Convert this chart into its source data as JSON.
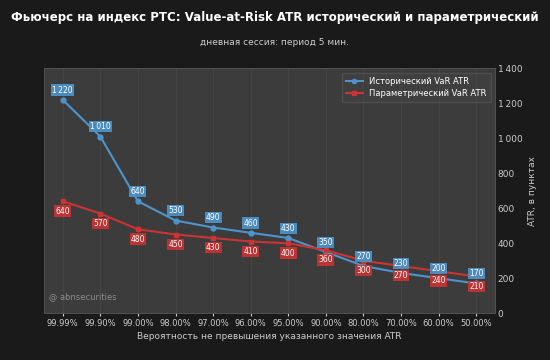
{
  "title": "Фьючерс на индекс РТС: Value-at-Risk ATR исторический и параметрический",
  "subtitle": "дневная сессия: период 5 мин.",
  "xlabel": "Вероятность не превышения указанного значения ATR",
  "ylabel_right": "ATR, в пунктах",
  "watermark": "@ abnsecurities",
  "x_labels": [
    "99.99%",
    "99.90%",
    "99.00%",
    "98.00%",
    "97.00%",
    "96.00%",
    "95.00%",
    "90.00%",
    "80.00%",
    "70.00%",
    "60.00%",
    "50.00%"
  ],
  "historical_values": [
    1220,
    1010,
    640,
    530,
    490,
    460,
    430,
    350,
    270,
    230,
    200,
    170
  ],
  "parametric_values": [
    640,
    570,
    480,
    450,
    430,
    410,
    400,
    360,
    300,
    270,
    240,
    210
  ],
  "historical_color": "#4d94cc",
  "parametric_color": "#cc3333",
  "historical_label": "Исторический VaR ATR",
  "parametric_label": "Параметрический VaR ATR",
  "bg_color": "#1a1a1a",
  "plot_bg_color": "#3c3c3c",
  "title_bg_color": "#111111",
  "grid_color": "#555555",
  "text_color": "#cccccc",
  "ylim": [
    0,
    1400
  ],
  "yticks_right": [
    0,
    200,
    400,
    600,
    800,
    1000,
    1200,
    1400
  ]
}
